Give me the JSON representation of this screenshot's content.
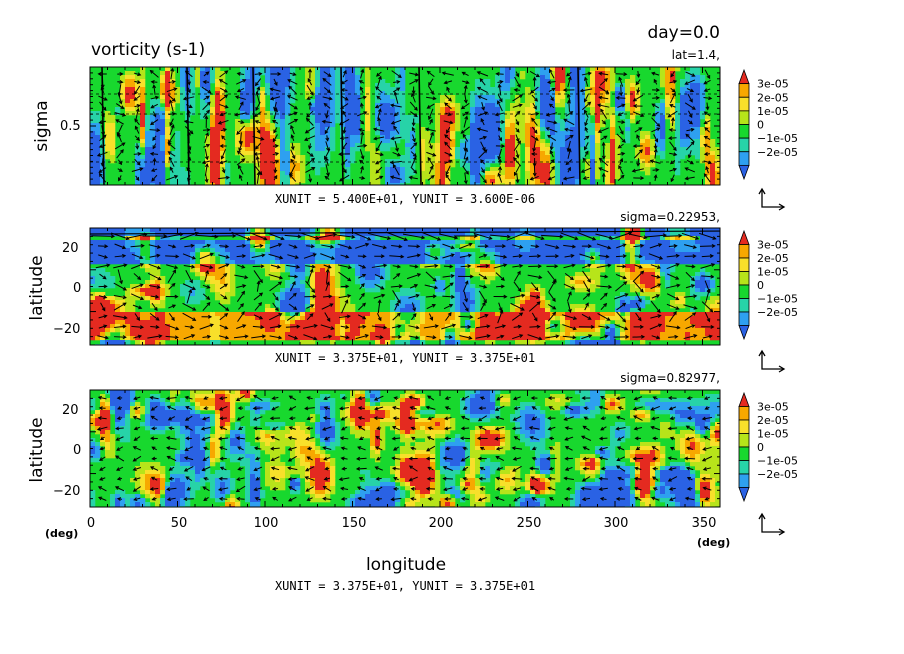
{
  "figure": {
    "title": "vorticity (s-1)",
    "day_label": "day=0.0",
    "xlabel": "longitude",
    "deg_label": "(deg)"
  },
  "colors": {
    "levels": [
      "#2a62e4",
      "#2ea0f0",
      "#27d3a8",
      "#18d82e",
      "#b7e41a",
      "#f8e02a",
      "#f7a800",
      "#e42a20"
    ],
    "level_bounds": [
      -2.5e-05,
      -2e-05,
      -1e-05,
      0,
      1e-05,
      2e-05,
      3e-05
    ],
    "colorbar_labels": [
      "3e-05",
      "2e-05",
      "1e-05",
      "0",
      "−1e-05",
      "−2e-05"
    ]
  },
  "chart_data": [
    {
      "type": "heatmap",
      "panel": "top",
      "title": "vorticity (s-1)",
      "subtitle": "lat=1.4,",
      "xlabel": "",
      "ylabel": "sigma",
      "xlim": [
        0,
        360
      ],
      "ylim": [
        0,
        1
      ],
      "ytick_labels": [
        "0.5"
      ],
      "footer": "XUNIT = 5.400E+01, YUNIT = 3.600E-06",
      "vectors": true
    },
    {
      "type": "heatmap",
      "panel": "middle",
      "subtitle": "sigma=0.22953,",
      "xlabel": "",
      "ylabel": "latitude",
      "xlim": [
        0,
        360
      ],
      "ylim": [
        -28,
        28
      ],
      "ytick_labels": [
        "20",
        "0",
        "−20"
      ],
      "footer": "XUNIT = 3.375E+01, YUNIT = 3.375E+01",
      "vectors": true
    },
    {
      "type": "heatmap",
      "panel": "bottom",
      "subtitle": "sigma=0.82977,",
      "xlabel": "longitude",
      "ylabel": "latitude",
      "xlim": [
        0,
        360
      ],
      "ylim": [
        -28,
        28
      ],
      "xtick_labels": [
        "0",
        "50",
        "100",
        "150",
        "200",
        "250",
        "300",
        "350"
      ],
      "ytick_labels": [
        "20",
        "0",
        "−20"
      ],
      "footer": "XUNIT = 3.375E+01, YUNIT = 3.375E+01",
      "vectors": true
    }
  ]
}
